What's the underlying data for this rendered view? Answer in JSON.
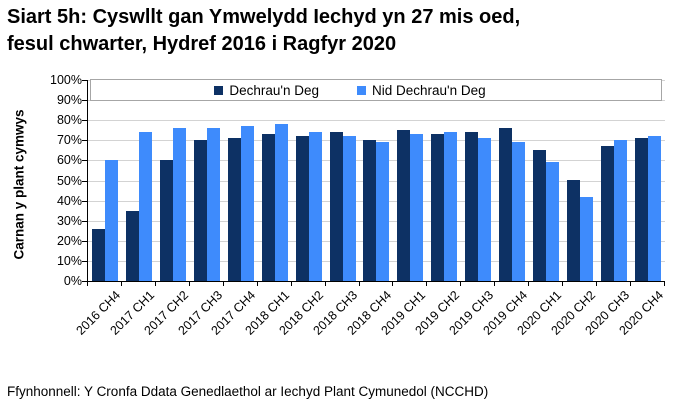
{
  "title": {
    "line1": "Siart 5h: Cyswllt gan Ymwelydd Iechyd yn 27 mis oed,",
    "line2": "fesul chwarter, Hydref 2016 i Ragfyr 2020"
  },
  "source_note": "Ffynhonnell: Y Cronfa Ddata Genedlaethol ar Iechyd Plant Cymunedol (NCCHD)",
  "chart_data": {
    "type": "bar",
    "title": "Siart 5h: Cyswllt gan Ymwelydd Iechyd yn 27 mis oed, fesul chwarter, Hydref 2016 i Ragfyr 2020",
    "ylabel": "Carnan y plant cymwys",
    "xlabel": "",
    "ylim": [
      0,
      100
    ],
    "ytick_step": 10,
    "ytick_suffix": "%",
    "grid": true,
    "legend_position": "top",
    "categories": [
      "2016 CH4",
      "2017 CH1",
      "2017 CH2",
      "2017 CH3",
      "2017 CH4",
      "2018 CH1",
      "2018 CH2",
      "2018 CH3",
      "2018 CH4",
      "2019 CH1",
      "2019 CH2",
      "2019 CH3",
      "2019 CH4",
      "2020 CH1",
      "2020 CH2",
      "2020 CH3",
      "2020 CH4"
    ],
    "series": [
      {
        "name": "Dechrau'n Deg",
        "color": "#0d3164",
        "values": [
          26,
          35,
          60,
          70,
          71,
          73,
          72,
          74,
          70,
          75,
          73,
          74,
          76,
          65,
          50,
          67,
          71
        ]
      },
      {
        "name": "Nid Dechrau'n Deg",
        "color": "#3e8bfc",
        "values": [
          60,
          74,
          76,
          76,
          77,
          78,
          74,
          72,
          69,
          73,
          74,
          71,
          69,
          59,
          42,
          70,
          72
        ]
      }
    ],
    "colors": {
      "axis": "#000000",
      "gridline": "#d3d3d3",
      "legend_border": "#a6a6a6"
    }
  }
}
